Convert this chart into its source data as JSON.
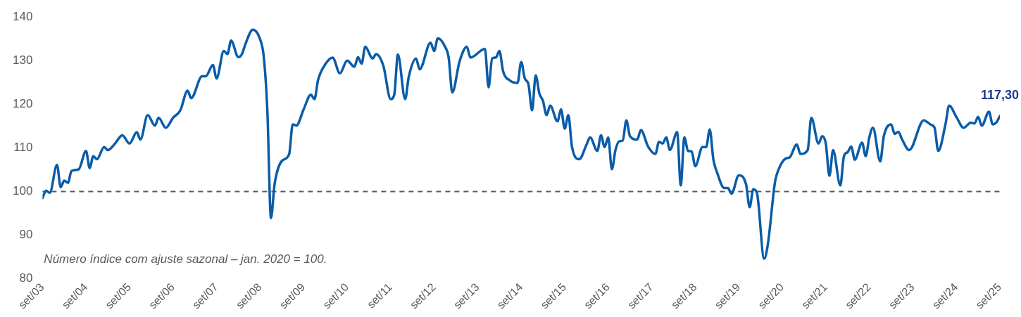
{
  "chart_data": {
    "type": "line",
    "annotations": [
      "Número índice com ajuste sazonal – jan. 2020 = 100.",
      {
        "text": "117,30",
        "x": "2025-09",
        "y": 117.3
      }
    ],
    "series": [
      {
        "color": "#0a5ca8",
        "x": [
          "2003-09",
          "2003-10",
          "2003-11",
          "2004-01",
          "2004-02",
          "2004-03",
          "2004-04",
          "2004-05",
          "2004-07",
          "2004-09",
          "2004-10",
          "2004-11",
          "2004-12",
          "2005-02",
          "2005-03",
          "2005-05",
          "2005-07",
          "2005-09",
          "2005-11",
          "2005-12",
          "2006-02",
          "2006-04",
          "2006-05",
          "2006-07",
          "2006-09",
          "2006-11",
          "2007-01",
          "2007-02",
          "2007-05",
          "2007-06",
          "2007-08",
          "2007-09",
          "2007-11",
          "2007-12",
          "2008-01",
          "2008-03",
          "2008-04",
          "2008-05",
          "2008-07",
          "2008-09",
          "2008-10",
          "2008-11",
          "2008-12",
          "2009-01",
          "2009-03",
          "2009-05",
          "2009-06",
          "2009-07",
          "2009-09",
          "2009-11",
          "2009-12",
          "2010-01",
          "2010-03",
          "2010-05",
          "2010-07",
          "2010-09",
          "2010-11",
          "2010-12",
          "2011-01",
          "2011-02",
          "2011-04",
          "2011-05",
          "2011-07",
          "2011-09",
          "2011-10",
          "2011-11",
          "2012-01",
          "2012-02",
          "2012-04",
          "2012-05",
          "2012-08",
          "2012-09",
          "2012-10",
          "2012-12",
          "2013-01",
          "2013-02",
          "2013-04",
          "2013-06",
          "2013-07",
          "2013-11",
          "2013-12",
          "2014-01",
          "2014-02",
          "2014-03",
          "2014-04",
          "2014-06",
          "2014-08",
          "2014-09",
          "2014-10",
          "2014-11",
          "2014-12",
          "2015-01",
          "2015-02",
          "2015-03",
          "2015-04",
          "2015-05",
          "2015-07",
          "2015-08",
          "2015-09",
          "2015-10",
          "2015-11",
          "2016-01",
          "2016-03",
          "2016-04",
          "2016-06",
          "2016-07",
          "2016-08",
          "2016-09",
          "2016-10",
          "2016-11",
          "2016-12",
          "2017-01",
          "2017-02",
          "2017-03",
          "2017-05",
          "2017-06",
          "2017-08",
          "2017-10",
          "2017-11",
          "2017-12",
          "2018-01",
          "2018-02",
          "2018-04",
          "2018-05",
          "2018-06",
          "2018-07",
          "2018-08",
          "2018-09",
          "2018-11",
          "2018-12",
          "2019-01",
          "2019-02",
          "2019-03",
          "2019-05",
          "2019-06",
          "2019-07",
          "2019-09",
          "2019-11",
          "2019-12",
          "2020-01",
          "2020-02",
          "2020-04",
          "2020-05",
          "2020-07",
          "2020-08",
          "2020-10",
          "2020-11",
          "2021-01",
          "2021-02",
          "2021-04",
          "2021-05",
          "2021-07",
          "2021-08",
          "2021-09",
          "2021-10",
          "2021-11",
          "2022-01",
          "2022-02",
          "2022-03",
          "2022-04",
          "2022-05",
          "2022-07",
          "2022-08",
          "2022-09",
          "2022-10",
          "2022-12",
          "2023-01",
          "2023-03",
          "2023-04",
          "2023-05",
          "2023-06",
          "2023-08",
          "2023-12",
          "2024-02",
          "2024-03",
          "2024-04",
          "2024-06",
          "2024-07",
          "2024-09",
          "2024-11",
          "2025-01",
          "2025-02",
          "2025-03",
          "2025-04",
          "2025-06",
          "2025-07",
          "2025-08",
          "2025-09"
        ],
        "values": [
          98.5,
          100.2,
          99.7,
          106.1,
          101.0,
          102.5,
          102.0,
          104.7,
          105.1,
          109.3,
          105.4,
          108.1,
          107.4,
          110.2,
          109.5,
          111.0,
          112.9,
          111.0,
          113.6,
          111.9,
          117.5,
          115.1,
          116.9,
          114.6,
          116.9,
          118.6,
          123.1,
          121.4,
          126.4,
          126.4,
          129.0,
          125.9,
          132.2,
          131.5,
          134.6,
          130.8,
          131.5,
          133.9,
          137.1,
          134.9,
          131.0,
          118.6,
          93.9,
          101.7,
          107.0,
          108.5,
          115.4,
          115.1,
          118.8,
          122.2,
          121.2,
          125.6,
          129.2,
          130.7,
          127.1,
          130.0,
          128.6,
          130.8,
          129.3,
          133.2,
          130.5,
          131.5,
          128.8,
          121.2,
          122.2,
          131.4,
          121.2,
          126.3,
          130.5,
          128.0,
          134.1,
          132.2,
          135.1,
          133.2,
          130.7,
          122.7,
          129.8,
          133.2,
          130.7,
          132.7,
          123.9,
          130.5,
          130.7,
          132.2,
          127.6,
          125.4,
          124.9,
          129.7,
          125.9,
          124.6,
          118.6,
          126.6,
          122.5,
          120.8,
          117.5,
          119.7,
          116.1,
          118.8,
          114.4,
          117.5,
          110.3,
          107.4,
          110.7,
          112.4,
          109.3,
          112.9,
          110.2,
          112.4,
          105.1,
          109.5,
          111.5,
          111.7,
          116.3,
          112.7,
          111.9,
          114.1,
          110.3,
          108.6,
          111.4,
          111.0,
          112.4,
          109.5,
          113.6,
          101.4,
          112.4,
          109.3,
          109.2,
          105.8,
          110.2,
          110.2,
          114.2,
          107.3,
          104.4,
          100.8,
          100.8,
          99.5,
          103.7,
          101.7,
          96.4,
          100.5,
          99.7,
          84.6,
          87.8,
          102.2,
          105.1,
          107.6,
          107.8,
          110.8,
          108.6,
          109.5,
          116.9,
          111.0,
          112.7,
          111.0,
          103.6,
          109.5,
          101.4,
          108.1,
          109.0,
          110.3,
          107.3,
          111.2,
          108.1,
          112.4,
          114.6,
          106.9,
          112.7,
          115.4,
          113.2,
          113.7,
          112.0,
          109.5,
          116.3,
          115.3,
          114.6,
          109.3,
          115.4,
          119.7,
          117.1,
          114.6,
          115.8,
          115.6,
          117.1,
          115.1,
          118.3,
          115.4,
          115.8,
          117.3
        ]
      }
    ],
    "xlim": [
      "2003-09",
      "2025-09"
    ],
    "xticks": [
      {
        "value": "2003-09",
        "label": "set/03"
      },
      {
        "value": "2004-09",
        "label": "set/04"
      },
      {
        "value": "2005-09",
        "label": "set/05"
      },
      {
        "value": "2006-09",
        "label": "set/06"
      },
      {
        "value": "2007-09",
        "label": "set/07"
      },
      {
        "value": "2008-09",
        "label": "set/08"
      },
      {
        "value": "2009-09",
        "label": "set/09"
      },
      {
        "value": "2010-09",
        "label": "set/10"
      },
      {
        "value": "2011-09",
        "label": "set/11"
      },
      {
        "value": "2012-09",
        "label": "set/12"
      },
      {
        "value": "2013-09",
        "label": "set/13"
      },
      {
        "value": "2014-09",
        "label": "set/14"
      },
      {
        "value": "2015-09",
        "label": "set/15"
      },
      {
        "value": "2016-09",
        "label": "set/16"
      },
      {
        "value": "2017-09",
        "label": "set/17"
      },
      {
        "value": "2018-09",
        "label": "set/18"
      },
      {
        "value": "2019-09",
        "label": "set/19"
      },
      {
        "value": "2020-09",
        "label": "set/20"
      },
      {
        "value": "2021-09",
        "label": "set/21"
      },
      {
        "value": "2022-09",
        "label": "set/22"
      },
      {
        "value": "2023-09",
        "label": "set/23"
      },
      {
        "value": "2024-09",
        "label": "set/24"
      },
      {
        "value": "2025-09",
        "label": "set/25"
      }
    ],
    "ylim": [
      80,
      140
    ],
    "yticks": [
      80,
      90,
      100,
      110,
      120,
      130,
      140
    ],
    "ref_lines": [
      {
        "axis": "y",
        "value": 100,
        "color": "#595959",
        "line_style": "dashed"
      }
    ],
    "marker": "none",
    "line_style": "solid",
    "legend": false
  }
}
